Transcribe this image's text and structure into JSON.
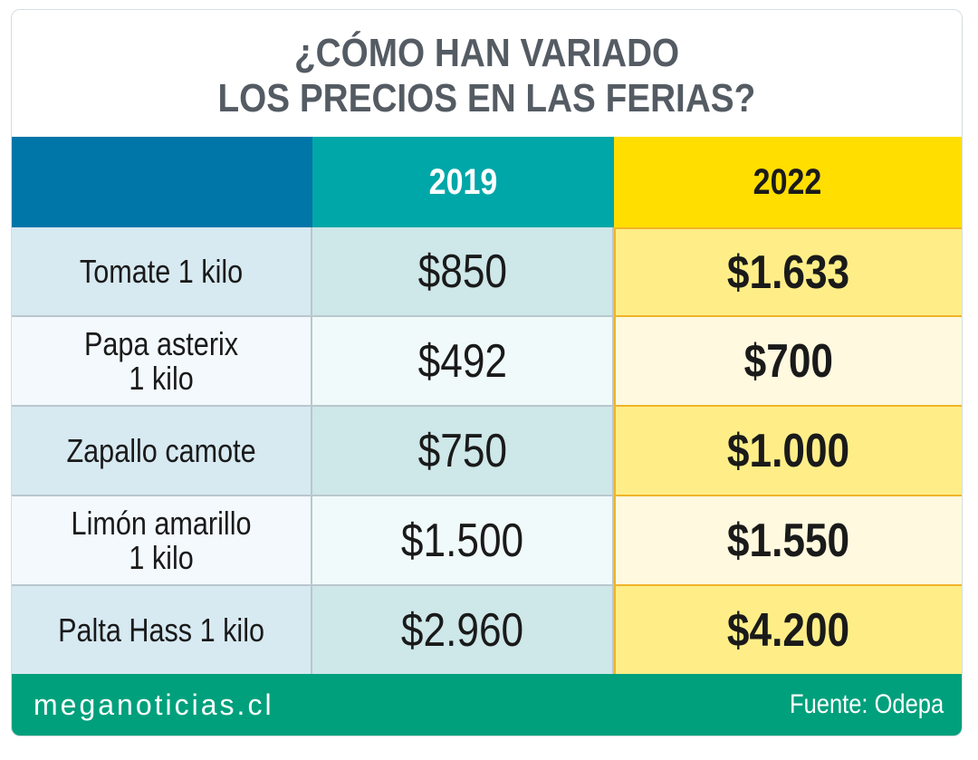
{
  "title_lines": [
    "¿CÓMO HAN VARIADO",
    "LOS PRECIOS EN LAS FERIAS?"
  ],
  "columns": [
    "",
    "2019",
    "2022"
  ],
  "rows": [
    {
      "label": [
        "Tomate 1 kilo"
      ],
      "v2019": "$850",
      "v2022": "$1.633"
    },
    {
      "label": [
        "Papa asterix",
        "1 kilo"
      ],
      "v2019": "$492",
      "v2022": "$700"
    },
    {
      "label": [
        "Zapallo camote"
      ],
      "v2019": "$750",
      "v2022": "$1.000"
    },
    {
      "label": [
        "Limón amarillo",
        "1 kilo"
      ],
      "v2019": "$1.500",
      "v2022": "$1.550"
    },
    {
      "label": [
        "Palta Hass 1 kilo"
      ],
      "v2019": "$2.960",
      "v2022": "$4.200"
    }
  ],
  "footer": {
    "brand": "meganoticias.cl",
    "source": "Fuente: Odepa"
  },
  "colors": {
    "header_blue": "#0076a8",
    "header_teal": "#00a7a8",
    "header_yellow": "#ffde00",
    "footer_green": "#00a07c"
  },
  "chart_data": {
    "type": "table",
    "title": "¿CÓMO HAN VARIADO LOS PRECIOS EN LAS FERIAS?",
    "categories": [
      "Tomate 1 kilo",
      "Papa asterix 1 kilo",
      "Zapallo camote",
      "Limón amarillo 1 kilo",
      "Palta Hass 1 kilo"
    ],
    "series": [
      {
        "name": "2019",
        "values": [
          850,
          492,
          750,
          1500,
          2960
        ]
      },
      {
        "name": "2022",
        "values": [
          1633,
          700,
          1000,
          1550,
          4200
        ]
      }
    ],
    "unit": "CLP",
    "source": "Fuente: Odepa"
  }
}
